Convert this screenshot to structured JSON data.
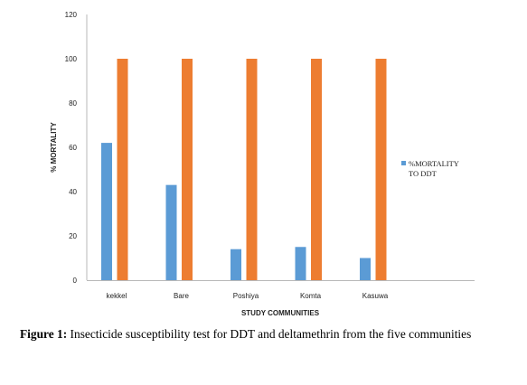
{
  "chart_data": {
    "type": "bar",
    "ylabel": "% MORTALITY",
    "xlabel": "STUDY COMMUNITIES",
    "ylim": [
      0,
      120
    ],
    "yticks": [
      "0",
      "20",
      "40",
      "60",
      "80",
      "100",
      "120"
    ],
    "grid": false,
    "legend_position": "right",
    "categories": [
      "kekkel",
      "Bare",
      "Poshiya",
      "Komta",
      "Kasuwa"
    ],
    "series": [
      {
        "name": "%MORTALITY TO DDT",
        "values": [
          62,
          43,
          14,
          15,
          10
        ],
        "color": "#5B9BD5"
      },
      {
        "name": "",
        "values": [
          100,
          100,
          100,
          100,
          100
        ],
        "color": "#ED7D31"
      }
    ],
    "legend_lines": [
      "%MORTALITY",
      "TO DDT"
    ]
  },
  "caption": {
    "label": "Figure 1:",
    "text": " Insecticide susceptibility test for DDT and deltamethrin from the five communities"
  }
}
